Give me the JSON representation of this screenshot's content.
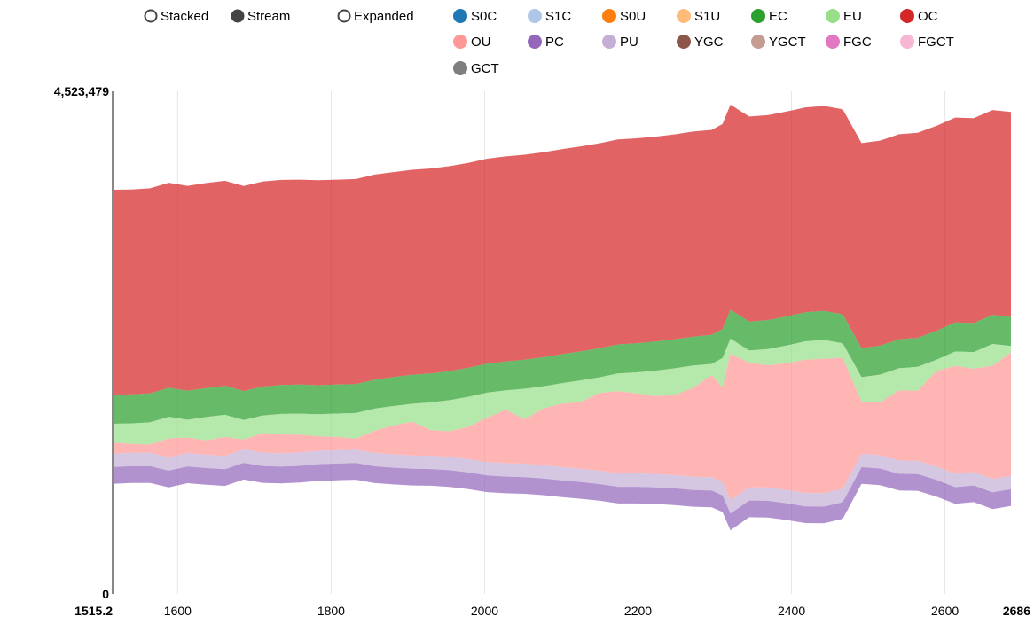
{
  "controls": {
    "modes": [
      {
        "label": "Stacked",
        "selected": false
      },
      {
        "label": "Stream",
        "selected": true
      },
      {
        "label": "Expanded",
        "selected": false
      }
    ]
  },
  "chart_data": {
    "type": "area",
    "style": "stream",
    "x": [
      1515.2,
      1539.6,
      1564,
      1588.4,
      1612.8,
      1637.2,
      1661.6,
      1686,
      1710.4,
      1734.8,
      1759.2,
      1783.6,
      1808,
      1832.4,
      1856.8,
      1881.2,
      1905.6,
      1930,
      1954.4,
      1978.8,
      2003.2,
      2027.6,
      2052,
      2076.4,
      2100.8,
      2125.2,
      2149.6,
      2174,
      2198.4,
      2222.8,
      2247.2,
      2271.6,
      2296,
      2310,
      2320.4,
      2344.8,
      2369.2,
      2393.6,
      2418,
      2442.4,
      2466.8,
      2491.2,
      2515.6,
      2540,
      2564.4,
      2588.8,
      2613.2,
      2637.6,
      2662,
      2686
    ],
    "x_ticks": [
      1600,
      1800,
      2000,
      2200,
      2400,
      2600
    ],
    "xlim": [
      1515.2,
      2686
    ],
    "ylim": [
      0,
      4523479
    ],
    "y_ticks": [
      0,
      4523479
    ],
    "y_tick_labels": [
      "0",
      "4,523,479"
    ],
    "x_end_labels": [
      "1515.2",
      "2686"
    ],
    "grid": true,
    "legend_position": "top",
    "series": [
      {
        "name": "S0C",
        "color": "#1f77b4",
        "values": [
          0,
          0,
          0,
          0,
          0,
          0,
          0,
          0,
          0,
          0,
          0,
          0,
          0,
          0,
          0,
          0,
          0,
          0,
          0,
          0,
          0,
          0,
          0,
          0,
          0,
          0,
          0,
          0,
          0,
          0,
          0,
          0,
          0,
          0,
          0,
          0,
          0,
          0,
          0,
          0,
          0,
          0,
          0,
          0,
          0,
          0,
          0,
          0,
          0,
          0
        ]
      },
      {
        "name": "S1C",
        "color": "#aec7e8",
        "values": [
          0,
          0,
          0,
          0,
          0,
          0,
          0,
          0,
          0,
          0,
          0,
          0,
          0,
          0,
          0,
          0,
          0,
          0,
          0,
          0,
          0,
          0,
          0,
          0,
          0,
          0,
          0,
          0,
          0,
          0,
          0,
          0,
          0,
          0,
          0,
          0,
          0,
          0,
          0,
          0,
          0,
          0,
          0,
          0,
          0,
          0,
          0,
          0,
          0,
          0
        ]
      },
      {
        "name": "S0U",
        "color": "#ff7f0e",
        "values": [
          0,
          0,
          0,
          0,
          0,
          0,
          0,
          0,
          0,
          0,
          0,
          0,
          0,
          0,
          0,
          0,
          0,
          0,
          0,
          0,
          0,
          0,
          0,
          0,
          0,
          0,
          0,
          0,
          0,
          0,
          0,
          0,
          0,
          0,
          0,
          0,
          0,
          0,
          0,
          0,
          0,
          0,
          0,
          0,
          0,
          0,
          0,
          0,
          0,
          0
        ]
      },
      {
        "name": "S1U",
        "color": "#ffbb78",
        "values": [
          0,
          0,
          0,
          0,
          0,
          0,
          0,
          0,
          0,
          0,
          0,
          0,
          0,
          0,
          0,
          0,
          0,
          0,
          0,
          0,
          0,
          0,
          0,
          0,
          0,
          0,
          0,
          0,
          0,
          0,
          0,
          0,
          0,
          0,
          0,
          0,
          0,
          0,
          0,
          0,
          0,
          0,
          0,
          0,
          0,
          0,
          0,
          0,
          0,
          0
        ]
      },
      {
        "name": "EC",
        "color": "#2ca02c",
        "values": [
          261000,
          261000,
          261000,
          261000,
          261000,
          261000,
          261000,
          261000,
          261000,
          261000,
          261000,
          261000,
          261000,
          261000,
          261000,
          261000,
          261000,
          261000,
          261000,
          261000,
          261000,
          261000,
          261000,
          261000,
          261000,
          261000,
          261000,
          261000,
          261000,
          261000,
          261000,
          261000,
          261000,
          261000,
          261000,
          261000,
          261000,
          261000,
          261000,
          261000,
          261000,
          261000,
          261000,
          261000,
          261000,
          261000,
          261000,
          261000,
          261000,
          261000
        ]
      },
      {
        "name": "EU",
        "color": "#98df8a",
        "values": [
          170000,
          185000,
          200000,
          195000,
          160000,
          210000,
          200000,
          175000,
          160000,
          185000,
          190000,
          200000,
          210000,
          230000,
          200000,
          175000,
          160000,
          250000,
          280000,
          270000,
          225000,
          175000,
          275000,
          200000,
          185000,
          195000,
          140000,
          160000,
          190000,
          230000,
          240000,
          200000,
          100000,
          265000,
          135000,
          110000,
          145000,
          160000,
          165000,
          170000,
          130000,
          220000,
          250000,
          200000,
          215000,
          100000,
          130000,
          150000,
          195000,
          60000
        ]
      },
      {
        "name": "OC",
        "color": "#d62728",
        "values": [
          1845000,
          1845000,
          1845000,
          1845000,
          1845000,
          1845000,
          1845000,
          1845000,
          1845000,
          1845000,
          1845000,
          1845000,
          1845000,
          1845000,
          1845000,
          1845000,
          1845000,
          1845000,
          1845000,
          1845000,
          1845000,
          1845000,
          1845000,
          1845000,
          1845000,
          1845000,
          1845000,
          1845000,
          1845000,
          1845000,
          1845000,
          1845000,
          1845000,
          1845000,
          1845000,
          1845000,
          1845000,
          1845000,
          1845000,
          1845000,
          1845000,
          1845000,
          1845000,
          1845000,
          1845000,
          1845000,
          1845000,
          1845000,
          1845000,
          1845000
        ]
      },
      {
        "name": "OU",
        "color": "#ff9896",
        "values": [
          100000,
          80000,
          75000,
          170000,
          140000,
          130000,
          170000,
          90000,
          175000,
          170000,
          160000,
          130000,
          120000,
          100000,
          200000,
          260000,
          305000,
          230000,
          230000,
          290000,
          400000,
          480000,
          400000,
          510000,
          570000,
          600000,
          700000,
          740000,
          720000,
          700000,
          720000,
          800000,
          920000,
          850000,
          1320000,
          1120000,
          1100000,
          1140000,
          1200000,
          1210000,
          1180000,
          470000,
          475000,
          630000,
          630000,
          860000,
          970000,
          930000,
          1020000,
          1110000
        ]
      },
      {
        "name": "PC",
        "color": "#9467bd",
        "values": [
          150000,
          150000,
          150000,
          150000,
          150000,
          150000,
          150000,
          150000,
          150000,
          150000,
          150000,
          150000,
          150000,
          150000,
          150000,
          150000,
          150000,
          150000,
          150000,
          150000,
          150000,
          150000,
          150000,
          150000,
          150000,
          150000,
          150000,
          150000,
          150000,
          150000,
          150000,
          150000,
          150000,
          150000,
          150000,
          150000,
          150000,
          150000,
          150000,
          150000,
          150000,
          150000,
          150000,
          150000,
          150000,
          150000,
          150000,
          150000,
          150000,
          150000
        ]
      },
      {
        "name": "PU",
        "color": "#c5b0d5",
        "values": [
          120000,
          120000,
          120000,
          120000,
          120000,
          120000,
          120000,
          120000,
          120000,
          120000,
          120000,
          120000,
          120000,
          120000,
          120000,
          120000,
          120000,
          120000,
          120000,
          120000,
          120000,
          120000,
          120000,
          120000,
          120000,
          120000,
          120000,
          120000,
          120000,
          120000,
          120000,
          120000,
          120000,
          120000,
          120000,
          120000,
          120000,
          120000,
          120000,
          120000,
          120000,
          120000,
          120000,
          120000,
          120000,
          120000,
          120000,
          120000,
          120000,
          120000
        ]
      },
      {
        "name": "YGC",
        "color": "#8c564b",
        "values": [
          0,
          0,
          0,
          0,
          0,
          0,
          0,
          0,
          0,
          0,
          0,
          0,
          0,
          0,
          0,
          0,
          0,
          0,
          0,
          0,
          0,
          0,
          0,
          0,
          0,
          0,
          0,
          0,
          0,
          0,
          0,
          0,
          0,
          0,
          0,
          0,
          0,
          0,
          0,
          0,
          0,
          0,
          0,
          0,
          0,
          0,
          0,
          0,
          0,
          0
        ]
      },
      {
        "name": "YGCT",
        "color": "#c49c94",
        "values": [
          0,
          0,
          0,
          0,
          0,
          0,
          0,
          0,
          0,
          0,
          0,
          0,
          0,
          0,
          0,
          0,
          0,
          0,
          0,
          0,
          0,
          0,
          0,
          0,
          0,
          0,
          0,
          0,
          0,
          0,
          0,
          0,
          0,
          0,
          0,
          0,
          0,
          0,
          0,
          0,
          0,
          0,
          0,
          0,
          0,
          0,
          0,
          0,
          0,
          0
        ]
      },
      {
        "name": "FGC",
        "color": "#e377c2",
        "values": [
          0,
          0,
          0,
          0,
          0,
          0,
          0,
          0,
          0,
          0,
          0,
          0,
          0,
          0,
          0,
          0,
          0,
          0,
          0,
          0,
          0,
          0,
          0,
          0,
          0,
          0,
          0,
          0,
          0,
          0,
          0,
          0,
          0,
          0,
          0,
          0,
          0,
          0,
          0,
          0,
          0,
          0,
          0,
          0,
          0,
          0,
          0,
          0,
          0,
          0
        ]
      },
      {
        "name": "FGCT",
        "color": "#f7b6d2",
        "values": [
          0,
          0,
          0,
          0,
          0,
          0,
          0,
          0,
          0,
          0,
          0,
          0,
          0,
          0,
          0,
          0,
          0,
          0,
          0,
          0,
          0,
          0,
          0,
          0,
          0,
          0,
          0,
          0,
          0,
          0,
          0,
          0,
          0,
          0,
          0,
          0,
          0,
          0,
          0,
          0,
          0,
          0,
          0,
          0,
          0,
          0,
          0,
          0,
          0,
          0
        ]
      },
      {
        "name": "GCT",
        "color": "#7f7f7f",
        "values": [
          0,
          0,
          0,
          0,
          0,
          0,
          0,
          0,
          0,
          0,
          0,
          0,
          0,
          0,
          0,
          0,
          0,
          0,
          0,
          0,
          0,
          0,
          0,
          0,
          0,
          0,
          0,
          0,
          0,
          0,
          0,
          0,
          0,
          0,
          0,
          0,
          0,
          0,
          0,
          0,
          0,
          0,
          0,
          0,
          0,
          0,
          0,
          0,
          0,
          0
        ]
      }
    ]
  }
}
